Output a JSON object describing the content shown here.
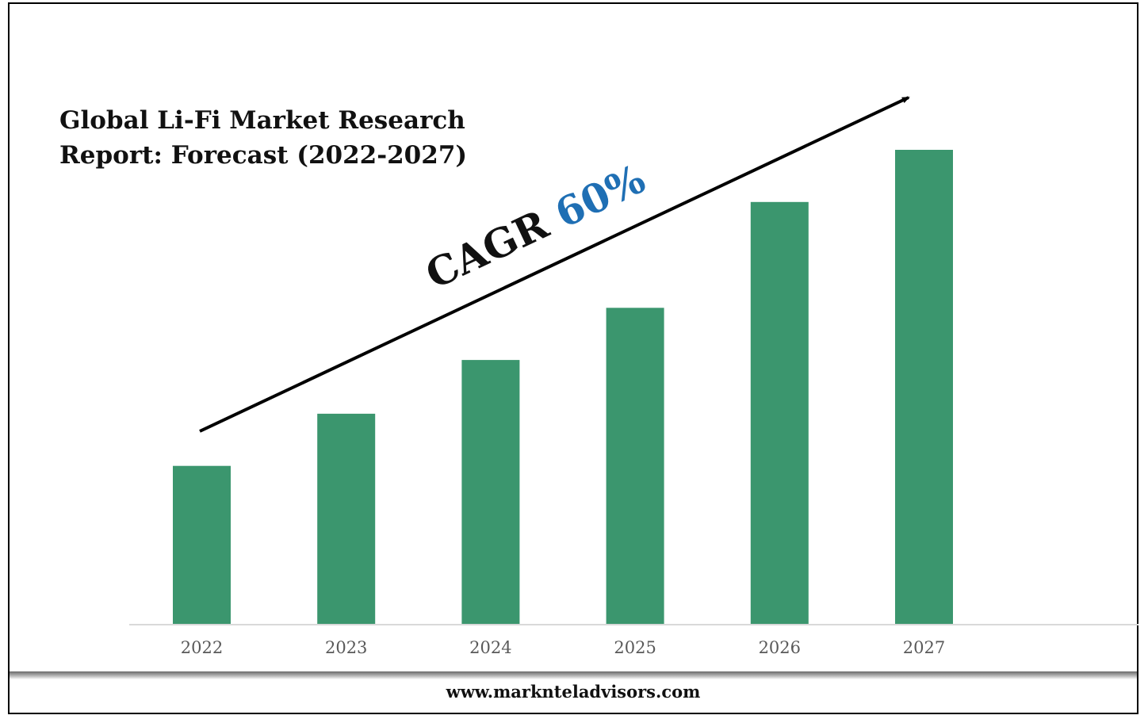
{
  "title_lines": [
    "Global Li-Fi Market Research",
    "Report: Forecast (2022-2027)"
  ],
  "annotation": {
    "label": "CAGR",
    "value": "60%",
    "value_color": "#1f6fb4",
    "label_color": "#111111"
  },
  "footer": "www.marknteladvisors.com",
  "colors": {
    "bar": "#3b966e",
    "axis": "#d9d9d9",
    "tick_text": "#595959"
  },
  "chart_data": {
    "type": "bar",
    "title": "Global Li-Fi Market Research Report: Forecast (2022-2027)",
    "categories": [
      "2022",
      "2023",
      "2024",
      "2025",
      "2026",
      "2027"
    ],
    "values": [
      1.0,
      1.33,
      1.67,
      2.0,
      2.67,
      3.0
    ],
    "ylim": [
      0,
      3.0
    ],
    "xlabel": "",
    "ylabel": "",
    "grid": false,
    "legend": "none",
    "annotations": [
      "CAGR 60%"
    ]
  }
}
